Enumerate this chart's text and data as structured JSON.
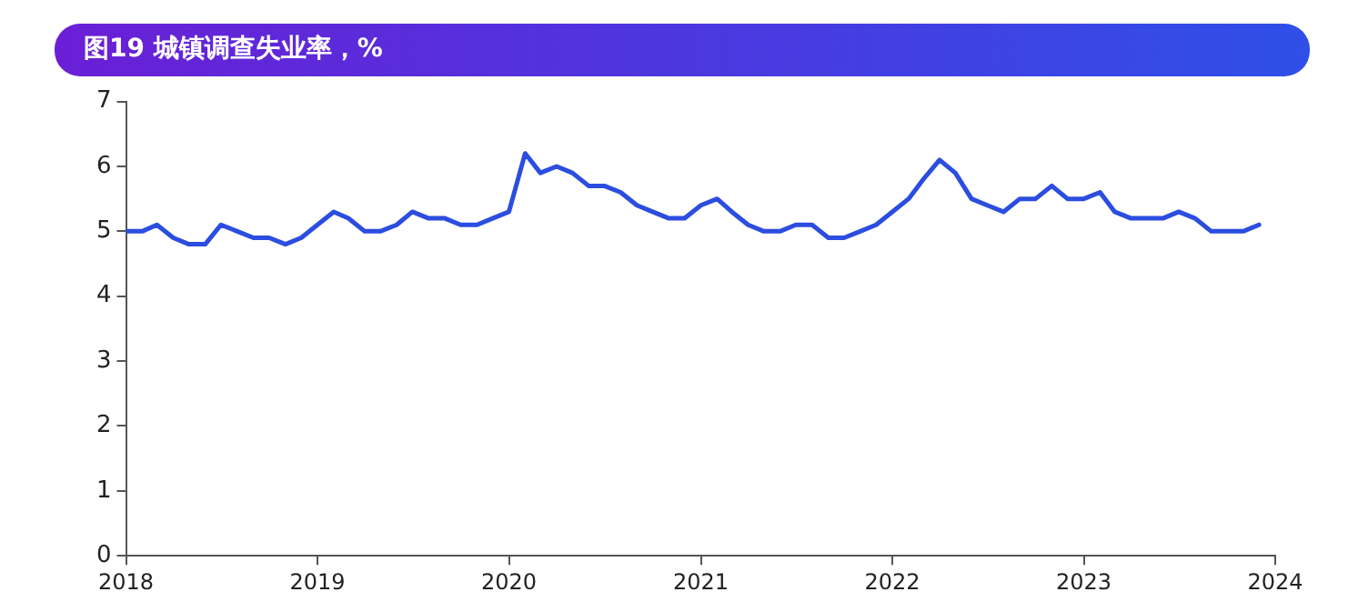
{
  "chart_data": {
    "type": "line",
    "title": "图19 城镇调查失业率，%",
    "x": [
      "2018-01",
      "2018-02",
      "2018-03",
      "2018-04",
      "2018-05",
      "2018-06",
      "2018-07",
      "2018-08",
      "2018-09",
      "2018-10",
      "2018-11",
      "2018-12",
      "2019-01",
      "2019-02",
      "2019-03",
      "2019-04",
      "2019-05",
      "2019-06",
      "2019-07",
      "2019-08",
      "2019-09",
      "2019-10",
      "2019-11",
      "2019-12",
      "2020-01",
      "2020-02",
      "2020-03",
      "2020-04",
      "2020-05",
      "2020-06",
      "2020-07",
      "2020-08",
      "2020-09",
      "2020-10",
      "2020-11",
      "2020-12",
      "2021-01",
      "2021-02",
      "2021-03",
      "2021-04",
      "2021-05",
      "2021-06",
      "2021-07",
      "2021-08",
      "2021-09",
      "2021-10",
      "2021-11",
      "2021-12",
      "2022-01",
      "2022-02",
      "2022-03",
      "2022-04",
      "2022-05",
      "2022-06",
      "2022-07",
      "2022-08",
      "2022-09",
      "2022-10",
      "2022-11",
      "2022-12",
      "2023-01",
      "2023-02",
      "2023-03",
      "2023-04",
      "2023-05",
      "2023-06",
      "2023-07",
      "2023-08",
      "2023-09",
      "2023-10",
      "2023-11",
      "2023-12"
    ],
    "series": [
      {
        "color": "#2b4de0",
        "values": [
          5.0,
          5.0,
          5.1,
          4.9,
          4.8,
          4.8,
          5.1,
          5.0,
          4.9,
          4.9,
          4.8,
          4.9,
          5.1,
          5.3,
          5.2,
          5.0,
          5.0,
          5.1,
          5.3,
          5.2,
          5.2,
          5.1,
          5.1,
          5.2,
          5.3,
          6.2,
          5.9,
          6.0,
          5.9,
          5.7,
          5.7,
          5.6,
          5.4,
          5.3,
          5.2,
          5.2,
          5.4,
          5.5,
          5.3,
          5.1,
          5.0,
          5.0,
          5.1,
          5.1,
          4.9,
          4.9,
          5.0,
          5.1,
          5.3,
          5.5,
          5.8,
          6.1,
          5.9,
          5.5,
          5.4,
          5.3,
          5.5,
          5.5,
          5.7,
          5.5,
          5.5,
          5.6,
          5.3,
          5.2,
          5.2,
          5.2,
          5.3,
          5.2,
          5.0,
          5.0,
          5.0,
          5.1
        ]
      }
    ],
    "xlim": [
      "2018",
      "2024"
    ],
    "xticks": [
      "2018",
      "2019",
      "2020",
      "2021",
      "2022",
      "2023",
      "2024"
    ],
    "ylim": [
      0,
      7
    ],
    "yticks": [
      0,
      1,
      2,
      3,
      4,
      5,
      6,
      7
    ],
    "grid": false,
    "legend": false,
    "marker": "none",
    "line_style": "solid"
  }
}
